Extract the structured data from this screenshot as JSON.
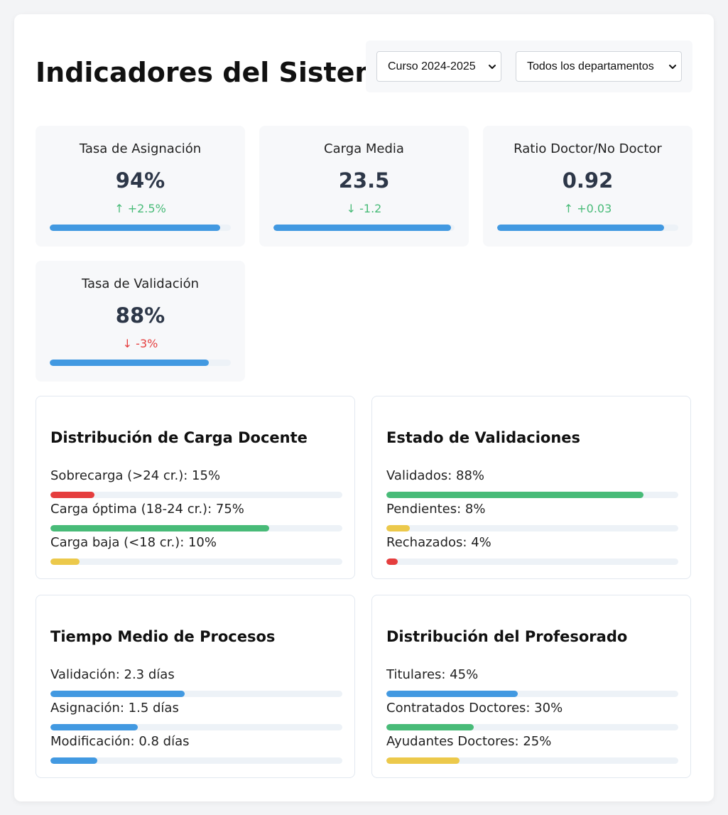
{
  "header": {
    "title": "Indicadores del Sistema",
    "course_filter": "Curso 2024-2025",
    "department_filter": "Todos los departamentos"
  },
  "stats": [
    {
      "label": "Tasa de Asignación",
      "value": "94%",
      "trend": "↑ +2.5%",
      "direction": "up",
      "progress": 0.94
    },
    {
      "label": "Carga Media",
      "value": "23.5",
      "trend": "↓ -1.2",
      "direction": "up",
      "progress": 0.98
    },
    {
      "label": "Ratio Doctor/No Doctor",
      "value": "0.92",
      "trend": "↑ +0.03",
      "direction": "up",
      "progress": 0.92
    },
    {
      "label": "Tasa de Validación",
      "value": "88%",
      "trend": "↓ -3%",
      "direction": "down",
      "progress": 0.88
    }
  ],
  "sections": [
    {
      "title": "Distribución de Carga Docente",
      "items": [
        {
          "label": "Sobrecarga (>24 cr.): 15%",
          "progress": 0.15,
          "color": "#e53e3e"
        },
        {
          "label": "Carga óptima (18-24 cr.): 75%",
          "progress": 0.75,
          "color": "#48bb78"
        },
        {
          "label": "Carga baja (<18 cr.): 10%",
          "progress": 0.1,
          "color": "#ecc94b"
        }
      ]
    },
    {
      "title": "Estado de Validaciones",
      "items": [
        {
          "label": "Validados: 88%",
          "progress": 0.88,
          "color": "#48bb78"
        },
        {
          "label": "Pendientes: 8%",
          "progress": 0.08,
          "color": "#ecc94b"
        },
        {
          "label": "Rechazados: 4%",
          "progress": 0.04,
          "color": "#e53e3e"
        }
      ]
    },
    {
      "title": "Tiempo Medio de Procesos",
      "items": [
        {
          "label": "Validación: 2.3 días",
          "progress": 0.46,
          "color": "#4299e1"
        },
        {
          "label": "Asignación: 1.5 días",
          "progress": 0.3,
          "color": "#4299e1"
        },
        {
          "label": "Modificación: 0.8 días",
          "progress": 0.16,
          "color": "#4299e1"
        }
      ]
    },
    {
      "title": "Distribución del Profesorado",
      "items": [
        {
          "label": "Titulares: 45%",
          "progress": 0.45,
          "color": "#4299e1"
        },
        {
          "label": "Contratados Doctores: 30%",
          "progress": 0.3,
          "color": "#48bb78"
        },
        {
          "label": "Ayudantes Doctores: 25%",
          "progress": 0.25,
          "color": "#ecc94b"
        }
      ]
    }
  ]
}
